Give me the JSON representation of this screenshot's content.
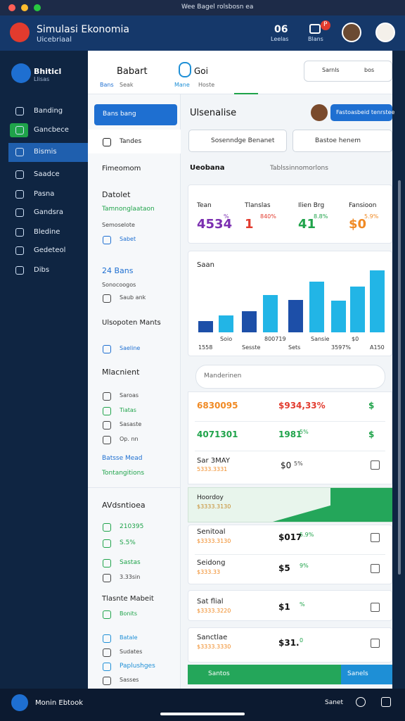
{
  "window": {
    "title": "Wee Bagel rolsbosn ea"
  },
  "header": {
    "app_name": "Simulasi Ekonomia",
    "subtitle": "Uicebriaal",
    "count": "06",
    "count_label": "Leelas",
    "icon_label": "Blans",
    "badge": "P"
  },
  "sidebar": {
    "user_name": "Bhiticl",
    "user_sub": "Llisas",
    "items": [
      "Banding",
      "Gancbece",
      "Bismis",
      "Saadce",
      "Pasna",
      "Gandsra",
      "Bledine",
      "Gedeteol",
      "Dibs"
    ]
  },
  "toolbar": {
    "title": "Babart",
    "field": "Goi",
    "search_placeholder": "Sarnls",
    "search_value": "bos",
    "tabs": [
      "Bans",
      "Seak",
      "Mane",
      "Hoste"
    ]
  },
  "left_panel": {
    "button": "Bans bang",
    "items": [
      "Tandes",
      "Fimeomom",
      "Datolet",
      "Tamnonglaataon",
      "Semoselote",
      "Sabet",
      "24 Bans",
      "Sonocoogos",
      "Saub ank",
      "Ulsopoten Mants",
      "Saeline",
      "Mlacnient",
      "Saroas",
      "Tiatas",
      "Sasaste",
      "Op. nn",
      "Batsse Mead",
      "Tontangitions",
      "AVdsntioea",
      "210395",
      "S.5%",
      "Sastas",
      "3.33sin",
      "Tlasnte Mabeit",
      "Bonits",
      "Batale",
      "Sudates",
      "Paplushges",
      "Sasses"
    ]
  },
  "main": {
    "title": "Ulsenalise",
    "action": "Fastoasbeid tenrstee",
    "buttons": [
      "Sosenndge Benanet",
      "Bastoe henem"
    ],
    "dropdown": "Ueobana",
    "filter": "Tablssinnomorlons",
    "stats": [
      {
        "label": "Tean",
        "value": "4534",
        "note": "%"
      },
      {
        "label": "Tlanslas",
        "value": "1",
        "note": "840%"
      },
      {
        "label": "Ilien Brg",
        "value": "41",
        "note": "8.8%"
      },
      {
        "label": "Fansioon",
        "value": "$0",
        "note": "5.9%"
      }
    ],
    "chart": {
      "title": "Saan",
      "values": [
        16,
        24,
        30,
        53,
        46,
        72,
        45,
        65,
        88
      ],
      "colors": [
        "#1d4fa8",
        "#22b5e6",
        "#1d4fa8",
        "#22b5e6",
        "#1d4fa8",
        "#22b5e6",
        "#22b5e6",
        "#22b5e6",
        "#22b5e6"
      ],
      "labels": [
        "1558",
        "Soio",
        "Sesste",
        "800719",
        "Sets",
        "Sansie",
        "3597%",
        "$0",
        "A150"
      ]
    },
    "search": "Manderinen",
    "rows": [
      [
        "6830095",
        "$934,33%",
        "$"
      ],
      [
        "4071301",
        "1981",
        "5%",
        "$"
      ],
      [
        "Sar 3MAY",
        "5333.3331",
        "$0",
        "5%"
      ]
    ],
    "highlight": [
      "Hoordoy",
      "$3333.3130"
    ],
    "cards": [
      [
        "Senitoal",
        "$3333.3130",
        "$017",
        "5.9%"
      ],
      [
        "Seidong",
        "$333.33",
        "$5",
        "9%"
      ],
      [
        "Sat flial",
        "$3333.3220",
        "$1",
        "%"
      ],
      [
        "Sanctlae",
        "$3333.3330",
        "$31.",
        "0"
      ]
    ],
    "bottom": [
      "Santos",
      "Sanels"
    ]
  },
  "footer": {
    "left": "Monin Ebtook",
    "right": "Sanet"
  }
}
